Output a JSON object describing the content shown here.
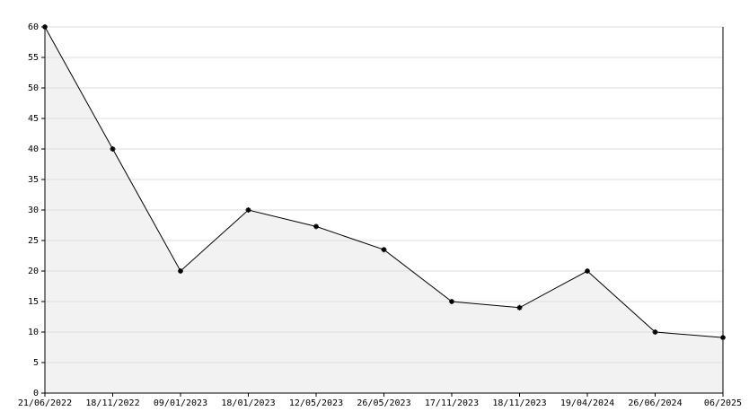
{
  "chart_data": {
    "type": "area",
    "categories": [
      "21/06/2022",
      "18/11/2022",
      "09/01/2023",
      "18/01/2023",
      "12/05/2023",
      "26/05/2023",
      "17/11/2023",
      "18/11/2023",
      "19/04/2024",
      "26/06/2024",
      "06/2025"
    ],
    "values": [
      60,
      40,
      20,
      30,
      27.3,
      23.5,
      15,
      14,
      20,
      10,
      9.1
    ],
    "color": "#000000",
    "fill": "#f2f2f2",
    "ylim": [
      0,
      60
    ],
    "yticks": [
      0,
      5,
      10,
      15,
      20,
      25,
      30,
      35,
      40,
      45,
      50,
      55,
      60
    ],
    "grid": true
  }
}
